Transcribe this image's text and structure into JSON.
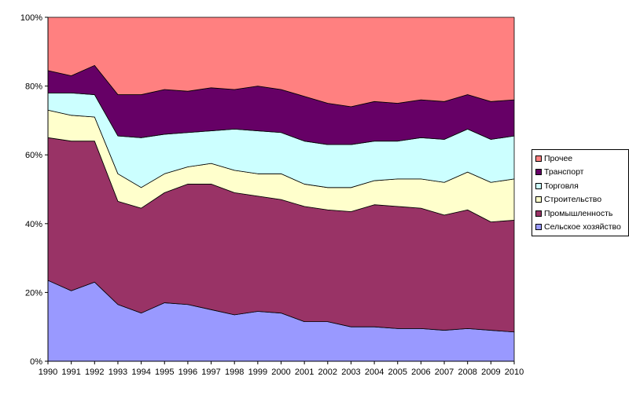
{
  "chart_data": {
    "type": "area",
    "stacked": true,
    "percent": true,
    "x": [
      "1990",
      "1991",
      "1992",
      "1993",
      "1994",
      "1995",
      "1996",
      "1997",
      "1998",
      "1999",
      "2000",
      "2001",
      "2002",
      "2003",
      "2004",
      "2005",
      "2006",
      "2007",
      "2008",
      "2009",
      "2010"
    ],
    "ylim": [
      0,
      100
    ],
    "yticks": [
      "0%",
      "20%",
      "40%",
      "60%",
      "80%",
      "100%"
    ],
    "grid": false,
    "legend_position": "right",
    "series": [
      {
        "name": "Сельское хозяйство",
        "color": "#9999ff",
        "values": [
          23.5,
          20.5,
          23,
          16.5,
          14,
          17,
          16.5,
          15,
          13.5,
          14.5,
          14,
          11.5,
          11.5,
          10,
          10,
          9.5,
          9.5,
          9,
          9.5,
          9,
          8.5
        ]
      },
      {
        "name": "Промышленность",
        "color": "#993366",
        "values": [
          41.5,
          43.5,
          41,
          30,
          30.5,
          32,
          35,
          36.5,
          35.5,
          33.5,
          33,
          33.5,
          32.5,
          33.5,
          35.5,
          35.5,
          35,
          33.5,
          34.5,
          31.5,
          32.5
        ]
      },
      {
        "name": "Строительство",
        "color": "#ffffcc",
        "values": [
          8,
          7.5,
          7,
          8,
          6,
          5.5,
          5,
          6,
          6.5,
          6.5,
          7.5,
          6.5,
          6.5,
          7,
          7,
          8,
          8.5,
          9.5,
          11,
          11.5,
          12
        ]
      },
      {
        "name": "Торговля",
        "color": "#ccffff",
        "values": [
          5,
          6.5,
          6.5,
          11,
          14.5,
          11.5,
          10,
          9.5,
          12,
          12.5,
          12,
          12.5,
          12.5,
          12.5,
          11.5,
          11,
          12,
          12.5,
          12.5,
          12.5,
          12.5
        ]
      },
      {
        "name": "Транспорт",
        "color": "#660066",
        "values": [
          6.5,
          5,
          8.5,
          12,
          12.5,
          13,
          12,
          12.5,
          11.5,
          13,
          12.5,
          13,
          12,
          11,
          11.5,
          11,
          11,
          11,
          10,
          11,
          10.5
        ]
      },
      {
        "name": "Прочее",
        "color": "#ff8080",
        "values": [
          15.5,
          17,
          14,
          22.5,
          22.5,
          21,
          21.5,
          20.5,
          21,
          20,
          21,
          23,
          25,
          26,
          24.5,
          25,
          24,
          24.5,
          22.5,
          24.5,
          24
        ]
      }
    ]
  }
}
